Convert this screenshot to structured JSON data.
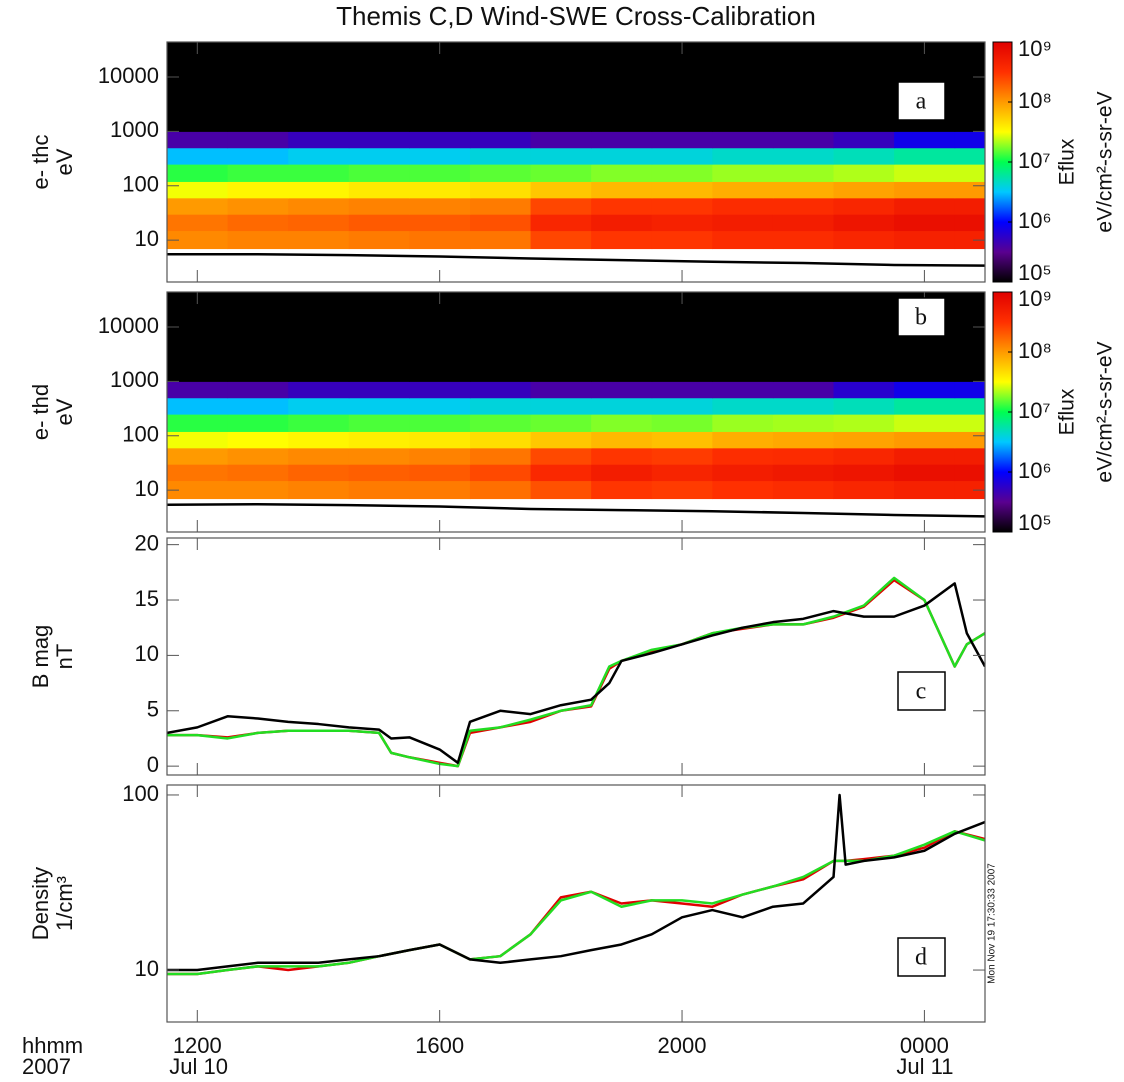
{
  "chart_data": [
    {
      "type": "heatmap",
      "title": "Themis C,D  Wind-SWE Cross-Calibration",
      "ylabel": [
        "e- thc",
        "eV"
      ],
      "panel_label": "a",
      "xlim": [
        11.5,
        25
      ],
      "xticks": [
        12,
        16,
        20,
        24
      ],
      "ylim": [
        1.7,
        44000
      ],
      "yticks": [
        10,
        100,
        1000,
        10000
      ],
      "log_y": true,
      "x_edges": [
        11.5,
        12.5,
        13.5,
        14.5,
        15.5,
        16.5,
        17.5,
        18.5,
        19.5,
        20.5,
        21.5,
        22.5,
        23.5,
        24.5,
        25
      ],
      "y_edges": [
        7,
        15,
        30,
        60,
        120,
        250,
        500,
        1000,
        44000
      ],
      "values": [
        [
          120000000.0,
          130000000.0,
          130000000.0,
          140000000.0,
          150000000.0,
          150000000.0,
          250000000.0,
          300000000.0,
          300000000.0,
          350000000.0,
          350000000.0,
          400000000.0,
          450000000.0,
          450000000.0
        ],
        [
          150000000.0,
          170000000.0,
          180000000.0,
          200000000.0,
          200000000.0,
          220000000.0,
          400000000.0,
          500000000.0,
          450000000.0,
          500000000.0,
          500000000.0,
          600000000.0,
          700000000.0,
          700000000.0
        ],
        [
          100000000.0,
          110000000.0,
          120000000.0,
          130000000.0,
          130000000.0,
          140000000.0,
          250000000.0,
          300000000.0,
          300000000.0,
          350000000.0,
          350000000.0,
          400000000.0,
          500000000.0,
          500000000.0
        ],
        [
          30000000.0,
          35000000.0,
          35000000.0,
          40000000.0,
          40000000.0,
          45000000.0,
          60000000.0,
          70000000.0,
          70000000.0,
          80000000.0,
          80000000.0,
          90000000.0,
          100000000.0,
          100000000.0
        ],
        [
          12000000.0,
          13000000.0,
          13000000.0,
          14000000.0,
          14000000.0,
          15000000.0,
          16000000.0,
          18000000.0,
          18000000.0,
          20000000.0,
          20000000.0,
          22000000.0,
          25000000.0,
          25000000.0
        ],
        [
          3000000.0,
          3000000.0,
          3500000.0,
          3500000.0,
          3500000.0,
          4000000.0,
          4000000.0,
          4000000.0,
          4000000.0,
          4500000.0,
          4500000.0,
          5000000.0,
          6000000.0,
          6000000.0
        ],
        [
          400000.0,
          400000.0,
          500000.0,
          500000.0,
          500000.0,
          500000.0,
          400000.0,
          400000.0,
          400000.0,
          400000.0,
          400000.0,
          500000.0,
          800000.0,
          800000.0
        ],
        [
          100000.0,
          100000.0,
          100000.0,
          100000.0,
          100000.0,
          100000.0,
          100000.0,
          100000.0,
          100000.0,
          100000.0,
          100000.0,
          100000.0,
          100000.0,
          100000.0
        ]
      ],
      "zlim": [
        100000.0,
        1000000000.0
      ],
      "zticks": [
        {
          "value": 100000.0,
          "label": "10⁵"
        },
        {
          "value": 1000000.0,
          "label": "10⁶"
        },
        {
          "value": 10000000.0,
          "label": "10⁷"
        },
        {
          "value": 100000000.0,
          "label": "10⁸"
        },
        {
          "value": 1000000000.0,
          "label": "10⁹"
        }
      ],
      "colorscale": [
        "#000000",
        "#5a0090",
        "#0000ff",
        "#00c8ff",
        "#00ff50",
        "#ffff00",
        "#ff9a00",
        "#ff3000",
        "#e00000"
      ],
      "colorbar_label": [
        "Eflux",
        "eV/cm²-s-sr-eV"
      ],
      "line": {
        "color": "#000000",
        "x": [
          11.5,
          13,
          14.5,
          16,
          17.5,
          19,
          20.5,
          22,
          23.5,
          25
        ],
        "values": [
          5.5,
          5.5,
          5.3,
          5.0,
          4.6,
          4.3,
          4.0,
          3.8,
          3.5,
          3.4
        ]
      }
    },
    {
      "type": "heatmap",
      "ylabel": [
        "e- thd",
        "eV"
      ],
      "panel_label": "b",
      "xlim": [
        11.5,
        25
      ],
      "xticks": [
        12,
        16,
        20,
        24
      ],
      "ylim": [
        1.7,
        44000
      ],
      "yticks": [
        10,
        100,
        1000,
        10000
      ],
      "log_y": true,
      "x_edges": [
        11.5,
        12.5,
        13.5,
        14.5,
        15.5,
        16.5,
        17.5,
        18.5,
        19.5,
        20.5,
        21.5,
        22.5,
        23.5,
        24.5,
        25
      ],
      "y_edges": [
        7,
        15,
        30,
        60,
        120,
        250,
        500,
        1000,
        44000
      ],
      "values": [
        [
          120000000.0,
          120000000.0,
          130000000.0,
          140000000.0,
          140000000.0,
          160000000.0,
          220000000.0,
          300000000.0,
          280000000.0,
          320000000.0,
          350000000.0,
          400000000.0,
          450000000.0,
          450000000.0
        ],
        [
          150000000.0,
          160000000.0,
          180000000.0,
          190000000.0,
          200000000.0,
          240000000.0,
          380000000.0,
          500000000.0,
          420000000.0,
          500000000.0,
          550000000.0,
          600000000.0,
          700000000.0,
          700000000.0
        ],
        [
          100000000.0,
          110000000.0,
          120000000.0,
          120000000.0,
          130000000.0,
          150000000.0,
          240000000.0,
          300000000.0,
          280000000.0,
          340000000.0,
          360000000.0,
          400000000.0,
          500000000.0,
          500000000.0
        ],
        [
          30000000.0,
          32000000.0,
          35000000.0,
          38000000.0,
          40000000.0,
          46000000.0,
          60000000.0,
          70000000.0,
          65000000.0,
          80000000.0,
          85000000.0,
          90000000.0,
          100000000.0,
          100000000.0
        ],
        [
          12000000.0,
          12000000.0,
          13000000.0,
          14000000.0,
          14000000.0,
          15000000.0,
          16000000.0,
          18000000.0,
          17000000.0,
          20000000.0,
          21000000.0,
          22000000.0,
          25000000.0,
          25000000.0
        ],
        [
          3000000.0,
          3000000.0,
          3500000.0,
          3500000.0,
          3500000.0,
          4000000.0,
          4000000.0,
          4000000.0,
          4000000.0,
          4500000.0,
          4500000.0,
          5000000.0,
          6000000.0,
          6000000.0
        ],
        [
          400000.0,
          400000.0,
          500000.0,
          500000.0,
          500000.0,
          500000.0,
          400000.0,
          400000.0,
          400000.0,
          400000.0,
          400000.0,
          600000.0,
          800000.0,
          800000.0
        ],
        [
          100000.0,
          100000.0,
          100000.0,
          100000.0,
          100000.0,
          100000.0,
          100000.0,
          100000.0,
          100000.0,
          100000.0,
          100000.0,
          100000.0,
          100000.0,
          100000.0
        ]
      ],
      "zlim": [
        100000.0,
        1000000000.0
      ],
      "zticks": [
        {
          "value": 100000.0,
          "label": "10⁵"
        },
        {
          "value": 1000000.0,
          "label": "10⁶"
        },
        {
          "value": 10000000.0,
          "label": "10⁷"
        },
        {
          "value": 100000000.0,
          "label": "10⁸"
        },
        {
          "value": 1000000000.0,
          "label": "10⁹"
        }
      ],
      "colorscale": [
        "#000000",
        "#5a0090",
        "#0000ff",
        "#00c8ff",
        "#00ff50",
        "#ffff00",
        "#ff9a00",
        "#ff3000",
        "#e00000"
      ],
      "colorbar_label": [
        "Eflux",
        "eV/cm²-s-sr-eV"
      ],
      "line": {
        "color": "#000000",
        "x": [
          11.5,
          13,
          14.5,
          16,
          17.5,
          19,
          20.5,
          22,
          23.5,
          25
        ],
        "values": [
          5.4,
          5.5,
          5.3,
          5.0,
          4.5,
          4.3,
          4.1,
          3.8,
          3.5,
          3.3
        ]
      }
    },
    {
      "type": "line",
      "ylabel": [
        "B mag",
        "nT"
      ],
      "panel_label": "c",
      "xlim": [
        11.5,
        25
      ],
      "xticks": [
        12,
        16,
        20,
        24
      ],
      "ylim": [
        -0.8,
        20.6
      ],
      "yticks": [
        0,
        5,
        10,
        15,
        20
      ],
      "log_y": false,
      "x": [
        11.5,
        12,
        12.5,
        13,
        13.5,
        14,
        14.5,
        15,
        15.2,
        15.5,
        16,
        16.3,
        16.5,
        17,
        17.5,
        18,
        18.5,
        18.8,
        19,
        19.5,
        20,
        20.5,
        21,
        21.5,
        22,
        22.5,
        23,
        23.5,
        24,
        24.5,
        24.7,
        25
      ],
      "series": [
        {
          "color": "#e00000",
          "values": [
            2.8,
            2.8,
            2.6,
            3.0,
            3.2,
            3.2,
            3.2,
            3.0,
            1.2,
            0.8,
            0.3,
            0.0,
            3.0,
            3.5,
            4.0,
            5.0,
            5.4,
            8.8,
            9.5,
            10.4,
            11.0,
            12.0,
            12.4,
            12.8,
            12.8,
            13.4,
            14.4,
            16.8,
            15.0,
            9.0,
            11,
            12
          ]
        },
        {
          "color": "#22dd22",
          "values": [
            2.8,
            2.8,
            2.5,
            3.0,
            3.2,
            3.2,
            3.2,
            3.0,
            1.2,
            0.8,
            0.2,
            0.0,
            3.2,
            3.5,
            4.2,
            5.0,
            5.5,
            9.0,
            9.5,
            10.5,
            11.0,
            12.0,
            12.5,
            12.8,
            12.8,
            13.5,
            14.5,
            17.0,
            15.0,
            9.0,
            11,
            12
          ]
        },
        {
          "color": "#000000",
          "values": [
            3.0,
            3.5,
            4.5,
            4.3,
            4.0,
            3.8,
            3.5,
            3.3,
            2.5,
            2.6,
            1.5,
            0.3,
            4.0,
            5.0,
            4.7,
            5.5,
            6.0,
            7.5,
            9.5,
            10.2,
            11.0,
            11.8,
            12.5,
            13.0,
            13.3,
            14.0,
            13.5,
            13.5,
            14.5,
            16.5,
            12,
            9
          ]
        }
      ]
    },
    {
      "type": "line",
      "ylabel": [
        "Density",
        "1/cm³"
      ],
      "panel_label": "d",
      "xlim": [
        11.5,
        25
      ],
      "xticks": [
        {
          "value": 12,
          "label": "1200"
        },
        {
          "value": 16,
          "label": "1600"
        },
        {
          "value": 20,
          "label": "2000"
        },
        {
          "value": 24,
          "label": "0000"
        }
      ],
      "xtick_dates": [
        {
          "value": 12,
          "label": "Jul 10"
        },
        {
          "value": 24,
          "label": "Jul 11"
        }
      ],
      "xlabel": [
        "hhmm",
        "2007"
      ],
      "annotation": "Mon Nov 19 17:30:33 2007",
      "ylim": [
        5.05,
        114
      ],
      "yticks": [
        10,
        100
      ],
      "log_y": true,
      "x": [
        11.5,
        12,
        12.5,
        13,
        13.5,
        14,
        14.5,
        15,
        15.5,
        16,
        16.5,
        17,
        17.5,
        18,
        18.5,
        19,
        19.5,
        20,
        20.5,
        21,
        21.5,
        22,
        22.5,
        22.6,
        22.7,
        23,
        23.5,
        24,
        24.5,
        25
      ],
      "series": [
        {
          "color": "#e00000",
          "values": [
            9.5,
            9.5,
            10,
            10.5,
            10,
            10.5,
            11,
            12,
            13,
            14,
            11.5,
            12,
            16,
            26,
            28,
            24,
            25,
            24,
            23,
            27,
            30,
            33,
            42,
            42,
            42,
            43,
            45,
            50,
            62,
            56
          ]
        },
        {
          "color": "#22dd22",
          "values": [
            9.5,
            9.5,
            10,
            10.5,
            10.5,
            10.5,
            11,
            12,
            13,
            14,
            11.5,
            12,
            16,
            25,
            28,
            23,
            25,
            25,
            24,
            27,
            30,
            34,
            42,
            42,
            42,
            42,
            45,
            52,
            62,
            55
          ]
        },
        {
          "color": "#000000",
          "values": [
            10,
            10,
            10.5,
            11,
            11,
            11,
            11.5,
            12,
            13,
            14,
            11.5,
            11,
            11.5,
            12,
            13,
            14,
            16,
            20,
            22,
            20,
            23,
            24,
            34,
            100,
            40,
            42,
            44,
            48,
            60,
            70
          ]
        }
      ]
    }
  ]
}
